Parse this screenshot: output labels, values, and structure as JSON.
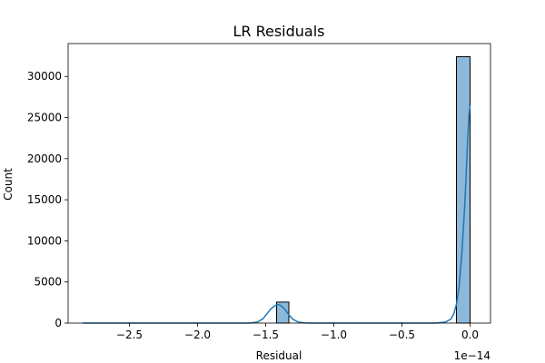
{
  "chart_data": {
    "type": "bar",
    "title": "LR Residuals",
    "xlabel": "Residual",
    "ylabel": "Count",
    "x_offset_label": "1e−14",
    "xlim": [
      -2.95,
      0.15
    ],
    "ylim": [
      0,
      34000
    ],
    "x_ticks": [
      -2.5,
      -2.0,
      -1.5,
      -1.0,
      -0.5,
      0.0
    ],
    "x_tick_labels": [
      "−2.5",
      "−2.0",
      "−1.5",
      "−1.0",
      "−0.5",
      "0.0"
    ],
    "y_ticks": [
      0,
      5000,
      10000,
      15000,
      20000,
      25000,
      30000
    ],
    "y_tick_labels": [
      "0",
      "5000",
      "10000",
      "15000",
      "20000",
      "25000",
      "30000"
    ],
    "bins": [
      {
        "x0": -1.42,
        "x1": -1.33,
        "count": 2550
      },
      {
        "x0": -0.1,
        "x1": 0.0,
        "count": 32400
      }
    ],
    "kde": [
      [
        -2.84,
        0
      ],
      [
        -2.5,
        0
      ],
      [
        -2.0,
        0
      ],
      [
        -1.62,
        0
      ],
      [
        -1.56,
        120
      ],
      [
        -1.52,
        520
      ],
      [
        -1.49,
        1150
      ],
      [
        -1.46,
        1750
      ],
      [
        -1.43,
        2150
      ],
      [
        -1.41,
        2250
      ],
      [
        -1.39,
        2150
      ],
      [
        -1.36,
        1700
      ],
      [
        -1.33,
        1000
      ],
      [
        -1.3,
        450
      ],
      [
        -1.26,
        120
      ],
      [
        -1.2,
        0
      ],
      [
        -1.0,
        0
      ],
      [
        -0.5,
        0
      ],
      [
        -0.25,
        0
      ],
      [
        -0.18,
        120
      ],
      [
        -0.14,
        500
      ],
      [
        -0.12,
        1100
      ],
      [
        -0.1,
        2300
      ],
      [
        -0.08,
        4500
      ],
      [
        -0.06,
        8500
      ],
      [
        -0.04,
        14000
      ],
      [
        -0.03,
        17500
      ],
      [
        -0.02,
        21500
      ],
      [
        -0.01,
        24800
      ],
      [
        0.0,
        26500
      ]
    ],
    "colors": {
      "bar": "#8db8da",
      "bar_edge": "#000000",
      "kde": "#1f77b4"
    }
  }
}
